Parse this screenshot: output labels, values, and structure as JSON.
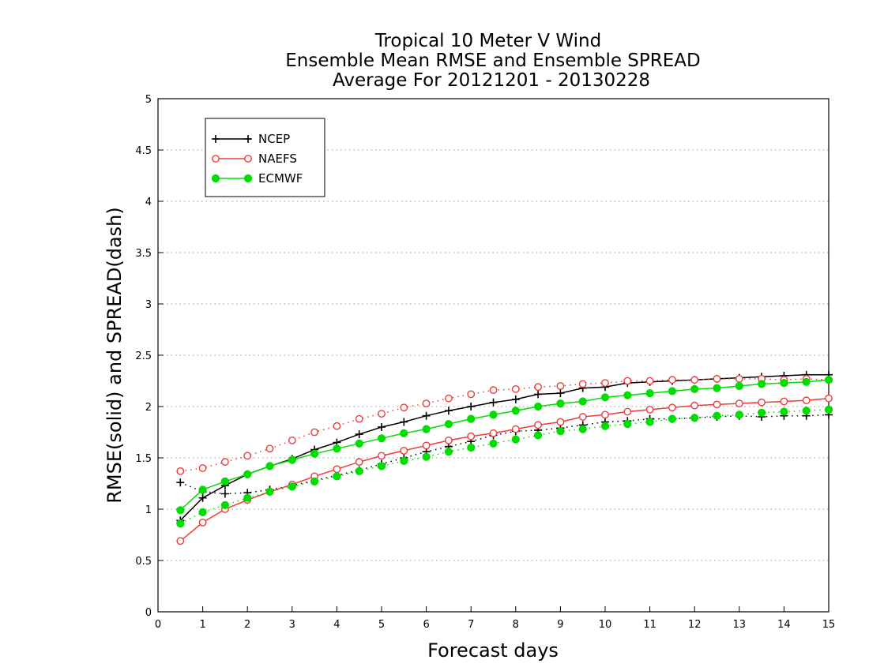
{
  "chart_data": {
    "type": "line",
    "title_lines": [
      "Tropical 10 Meter V Wind",
      "Ensemble Mean RMSE and Ensemble SPREAD",
      "Average For 20121201 - 20130228"
    ],
    "xlabel": "Forecast days",
    "ylabel": "RMSE(solid) and SPREAD(dash)",
    "xlim": [
      0,
      15
    ],
    "ylim": [
      0,
      5
    ],
    "x_ticks": [
      "0",
      "1",
      "2",
      "3",
      "4",
      "5",
      "6",
      "7",
      "8",
      "9",
      "10",
      "11",
      "12",
      "13",
      "14",
      "15"
    ],
    "y_ticks": [
      "0",
      "0.5",
      "1",
      "1.5",
      "2",
      "2.5",
      "3",
      "3.5",
      "4",
      "4.5",
      "5"
    ],
    "grid": "horizontal dotted",
    "legend_position": "top-left",
    "x": [
      0.5,
      1,
      1.5,
      2,
      2.5,
      3,
      3.5,
      4,
      4.5,
      5,
      5.5,
      6,
      6.5,
      7,
      7.5,
      8,
      8.5,
      9,
      9.5,
      10,
      10.5,
      11,
      11.5,
      12,
      12.5,
      13,
      13.5,
      14,
      14.5,
      15
    ],
    "series": [
      {
        "name": "NCEP",
        "color": "#000000",
        "marker": "plus",
        "rmse": [
          0.89,
          1.11,
          1.23,
          1.34,
          1.42,
          1.49,
          1.58,
          1.65,
          1.73,
          1.8,
          1.85,
          1.91,
          1.96,
          2.0,
          2.04,
          2.07,
          2.12,
          2.13,
          2.18,
          2.19,
          2.23,
          2.24,
          2.25,
          2.26,
          2.27,
          2.28,
          2.29,
          2.3,
          2.31,
          2.31
        ],
        "spread": [
          1.26,
          1.17,
          1.15,
          1.16,
          1.19,
          1.23,
          1.28,
          1.33,
          1.38,
          1.44,
          1.5,
          1.56,
          1.61,
          1.66,
          1.72,
          1.76,
          1.77,
          1.79,
          1.82,
          1.85,
          1.86,
          1.88,
          1.88,
          1.89,
          1.9,
          1.91,
          1.9,
          1.91,
          1.91,
          1.92
        ]
      },
      {
        "name": "NAEFS",
        "color": "#ee3b3b",
        "marker": "open-circle",
        "rmse": [
          0.69,
          0.87,
          1.0,
          1.09,
          1.17,
          1.24,
          1.32,
          1.39,
          1.46,
          1.52,
          1.57,
          1.62,
          1.67,
          1.71,
          1.74,
          1.78,
          1.82,
          1.85,
          1.9,
          1.92,
          1.95,
          1.97,
          1.99,
          2.01,
          2.02,
          2.03,
          2.04,
          2.05,
          2.06,
          2.08
        ],
        "spread": [
          1.37,
          1.4,
          1.46,
          1.52,
          1.59,
          1.67,
          1.75,
          1.81,
          1.88,
          1.93,
          1.99,
          2.03,
          2.08,
          2.12,
          2.16,
          2.17,
          2.19,
          2.2,
          2.22,
          2.23,
          2.25,
          2.25,
          2.26,
          2.26,
          2.27,
          2.27,
          2.27,
          2.26,
          2.27,
          2.26
        ]
      },
      {
        "name": "ECMWF",
        "color": "#00dd00",
        "marker": "filled-circle",
        "rmse": [
          0.99,
          1.19,
          1.27,
          1.34,
          1.42,
          1.48,
          1.54,
          1.59,
          1.64,
          1.69,
          1.74,
          1.78,
          1.83,
          1.88,
          1.92,
          1.96,
          2.0,
          2.03,
          2.05,
          2.09,
          2.11,
          2.13,
          2.15,
          2.17,
          2.18,
          2.2,
          2.22,
          2.23,
          2.24,
          2.26
        ],
        "spread": [
          0.86,
          0.97,
          1.04,
          1.11,
          1.17,
          1.22,
          1.27,
          1.32,
          1.37,
          1.42,
          1.47,
          1.51,
          1.56,
          1.6,
          1.64,
          1.68,
          1.72,
          1.76,
          1.78,
          1.81,
          1.83,
          1.85,
          1.88,
          1.89,
          1.91,
          1.92,
          1.94,
          1.95,
          1.96,
          1.97
        ]
      }
    ]
  }
}
